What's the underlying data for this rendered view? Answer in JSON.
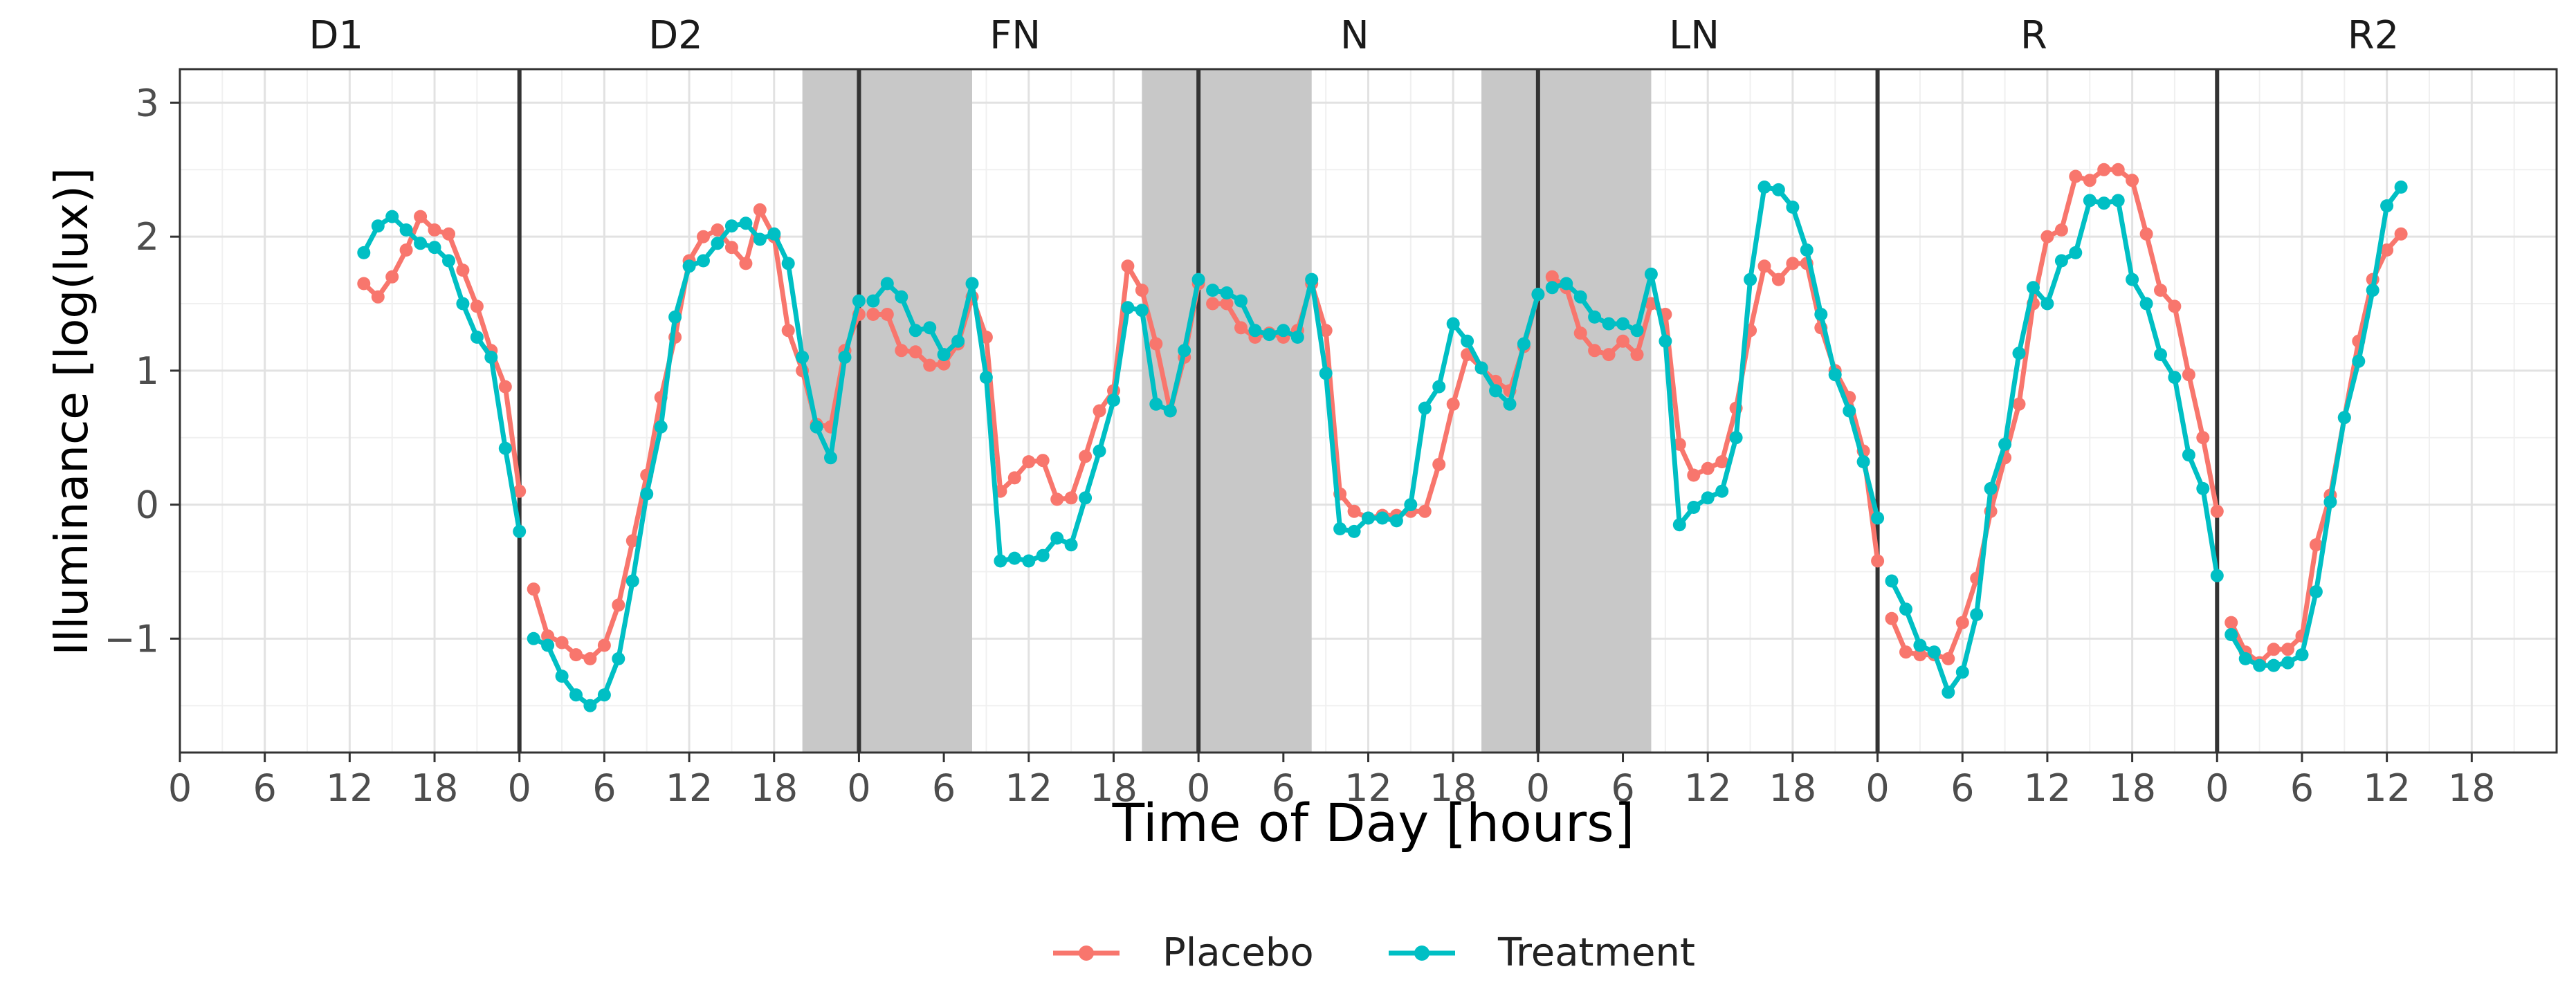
{
  "chart_data": {
    "type": "line",
    "xlabel": "Time of Day [hours]",
    "ylabel": "Illuminance [log(lux)]",
    "ylim": [
      -1.85,
      3.25
    ],
    "yticks": [
      -1,
      0,
      1,
      2,
      3
    ],
    "xticks_hours": [
      0,
      6,
      12,
      18
    ],
    "panel_hours": 24,
    "grid": true,
    "legend_position": "bottom",
    "panels": [
      "D1",
      "D2",
      "FN",
      "N",
      "LN",
      "R",
      "R2"
    ],
    "shaded_intervals": [
      {
        "panel": 1,
        "start": 20,
        "end": 24
      },
      {
        "panel": 2,
        "start": 0,
        "end": 8
      },
      {
        "panel": 2,
        "start": 20,
        "end": 24
      },
      {
        "panel": 3,
        "start": 0,
        "end": 8
      },
      {
        "panel": 3,
        "start": 20,
        "end": 24
      },
      {
        "panel": 4,
        "start": 0,
        "end": 8
      }
    ],
    "series": [
      {
        "name": "Placebo",
        "color": "#F8766D",
        "segments": [
          {
            "panel": 0,
            "start_hour": 13,
            "values": [
              1.65,
              1.55,
              1.7,
              1.9,
              2.15,
              2.05,
              2.02,
              1.75,
              1.48,
              1.15,
              0.88,
              0.1
            ]
          },
          {
            "panel": 1,
            "start_hour": 1,
            "values": [
              -0.63,
              -0.98,
              -1.03,
              -1.12,
              -1.15,
              -1.05,
              -0.75,
              -0.27,
              0.22,
              0.8,
              1.25,
              1.82,
              2.0,
              2.05,
              1.92,
              1.8,
              2.2,
              2.0,
              1.3,
              1.0,
              0.6,
              0.58,
              1.15,
              1.42
            ]
          },
          {
            "panel": 2,
            "start_hour": 1,
            "values": [
              1.42,
              1.42,
              1.15,
              1.14,
              1.04,
              1.05,
              1.2,
              1.55,
              1.25,
              0.1,
              0.2,
              0.32,
              0.33,
              0.04,
              0.05,
              0.36,
              0.7,
              0.85,
              1.78,
              1.6,
              1.2,
              0.7,
              1.1,
              1.65
            ]
          },
          {
            "panel": 3,
            "start_hour": 1,
            "values": [
              1.5,
              1.5,
              1.32,
              1.25,
              1.28,
              1.25,
              1.3,
              1.65,
              1.3,
              0.08,
              -0.05,
              -0.1,
              -0.08,
              -0.08,
              -0.05,
              -0.05,
              0.3,
              0.75,
              1.12,
              1.02,
              0.92,
              0.85,
              1.18,
              1.57
            ]
          },
          {
            "panel": 4,
            "start_hour": 1,
            "values": [
              1.7,
              1.62,
              1.28,
              1.15,
              1.12,
              1.22,
              1.12,
              1.5,
              1.42,
              0.45,
              0.22,
              0.27,
              0.32,
              0.72,
              1.3,
              1.78,
              1.68,
              1.8,
              1.8,
              1.32,
              1.0,
              0.8,
              0.4,
              -0.42
            ]
          },
          {
            "panel": 5,
            "start_hour": 1,
            "values": [
              -0.85,
              -1.1,
              -1.12,
              -1.12,
              -1.15,
              -0.88,
              -0.55,
              -0.05,
              0.35,
              0.75,
              1.5,
              2.0,
              2.05,
              2.45,
              2.42,
              2.5,
              2.5,
              2.42,
              2.02,
              1.6,
              1.48,
              0.97,
              0.5,
              -0.05
            ]
          },
          {
            "panel": 6,
            "start_hour": 1,
            "values": [
              -0.88,
              -1.1,
              -1.18,
              -1.08,
              -1.08,
              -0.98,
              -0.3,
              0.07,
              0.65,
              1.22,
              1.68,
              1.9,
              2.02
            ]
          }
        ]
      },
      {
        "name": "Treatment",
        "color": "#00BFC4",
        "segments": [
          {
            "panel": 0,
            "start_hour": 13,
            "values": [
              1.88,
              2.08,
              2.15,
              2.05,
              1.95,
              1.92,
              1.82,
              1.5,
              1.25,
              1.1,
              0.42,
              -0.2
            ]
          },
          {
            "panel": 1,
            "start_hour": 1,
            "values": [
              -1.0,
              -1.05,
              -1.28,
              -1.42,
              -1.5,
              -1.42,
              -1.15,
              -0.57,
              0.08,
              0.58,
              1.4,
              1.78,
              1.82,
              1.95,
              2.08,
              2.1,
              1.98,
              2.02,
              1.8,
              1.1,
              0.58,
              0.35,
              1.1,
              1.52
            ]
          },
          {
            "panel": 2,
            "start_hour": 1,
            "values": [
              1.52,
              1.65,
              1.55,
              1.3,
              1.32,
              1.12,
              1.22,
              1.65,
              0.95,
              -0.42,
              -0.4,
              -0.42,
              -0.38,
              -0.25,
              -0.3,
              0.05,
              0.4,
              0.78,
              1.47,
              1.45,
              0.75,
              0.7,
              1.15,
              1.68
            ]
          },
          {
            "panel": 3,
            "start_hour": 1,
            "values": [
              1.6,
              1.58,
              1.52,
              1.3,
              1.27,
              1.3,
              1.25,
              1.68,
              0.98,
              -0.18,
              -0.2,
              -0.1,
              -0.1,
              -0.12,
              0.0,
              0.72,
              0.88,
              1.35,
              1.22,
              1.02,
              0.85,
              0.75,
              1.2,
              1.57
            ]
          },
          {
            "panel": 4,
            "start_hour": 1,
            "values": [
              1.62,
              1.65,
              1.55,
              1.4,
              1.35,
              1.35,
              1.3,
              1.72,
              1.22,
              -0.15,
              -0.02,
              0.05,
              0.1,
              0.5,
              1.68,
              2.37,
              2.35,
              2.22,
              1.9,
              1.42,
              0.97,
              0.7,
              0.32,
              -0.1
            ]
          },
          {
            "panel": 5,
            "start_hour": 1,
            "values": [
              -0.57,
              -0.78,
              -1.05,
              -1.1,
              -1.4,
              -1.25,
              -0.82,
              0.12,
              0.45,
              1.13,
              1.62,
              1.5,
              1.82,
              1.88,
              2.27,
              2.25,
              2.27,
              1.68,
              1.5,
              1.12,
              0.95,
              0.37,
              0.12,
              -0.53
            ]
          },
          {
            "panel": 6,
            "start_hour": 1,
            "values": [
              -0.97,
              -1.15,
              -1.2,
              -1.2,
              -1.18,
              -1.12,
              -0.65,
              0.02,
              0.65,
              1.07,
              1.6,
              2.23,
              2.37
            ]
          }
        ]
      }
    ]
  }
}
